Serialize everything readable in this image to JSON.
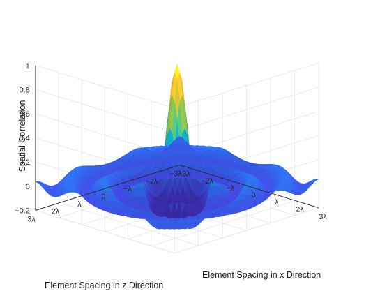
{
  "chart_data": {
    "type": "surface",
    "title": "",
    "function": "sinc(2*pi*r/lambda) with r = sqrt(x^2 + z^2)",
    "zlabel": "Spatial Correlation",
    "xlabel": "Element Spacing in x Direction",
    "ylabel": "Element Spacing in z Direction",
    "x_range_lambda": [
      -3,
      3
    ],
    "z_range_lambda": [
      -3,
      3
    ],
    "zlim": [
      -0.2,
      1
    ],
    "zticks": [
      {
        "value": 1,
        "label": "1"
      },
      {
        "value": 0.8,
        "label": "0.8"
      },
      {
        "value": 0.6,
        "label": "0.6"
      },
      {
        "value": 0.4,
        "label": "0.4"
      },
      {
        "value": 0.2,
        "label": "0.2"
      },
      {
        "value": 0,
        "label": "0"
      },
      {
        "value": -0.2,
        "label": "−0.2"
      }
    ],
    "xticks": [
      {
        "value": -3,
        "label": "−3λ"
      },
      {
        "value": -2,
        "label": "−2λ"
      },
      {
        "value": -1,
        "label": "−λ"
      },
      {
        "value": 0,
        "label": "0"
      },
      {
        "value": 1,
        "label": "λ"
      },
      {
        "value": 2,
        "label": "2λ"
      },
      {
        "value": 3,
        "label": "3λ"
      }
    ],
    "yticks": [
      {
        "value": 3,
        "label": "3λ"
      },
      {
        "value": 2,
        "label": "2λ"
      },
      {
        "value": 1,
        "label": "λ"
      },
      {
        "value": 0,
        "label": "0"
      },
      {
        "value": -1,
        "label": "−λ"
      },
      {
        "value": -2,
        "label": "−2λ"
      },
      {
        "value": -3,
        "label": "−3λ"
      }
    ],
    "grid": true,
    "colormap": "parula",
    "colors": {
      "background": "#ffffff",
      "grid": "#e6e6e6",
      "axis": "#262626"
    }
  }
}
